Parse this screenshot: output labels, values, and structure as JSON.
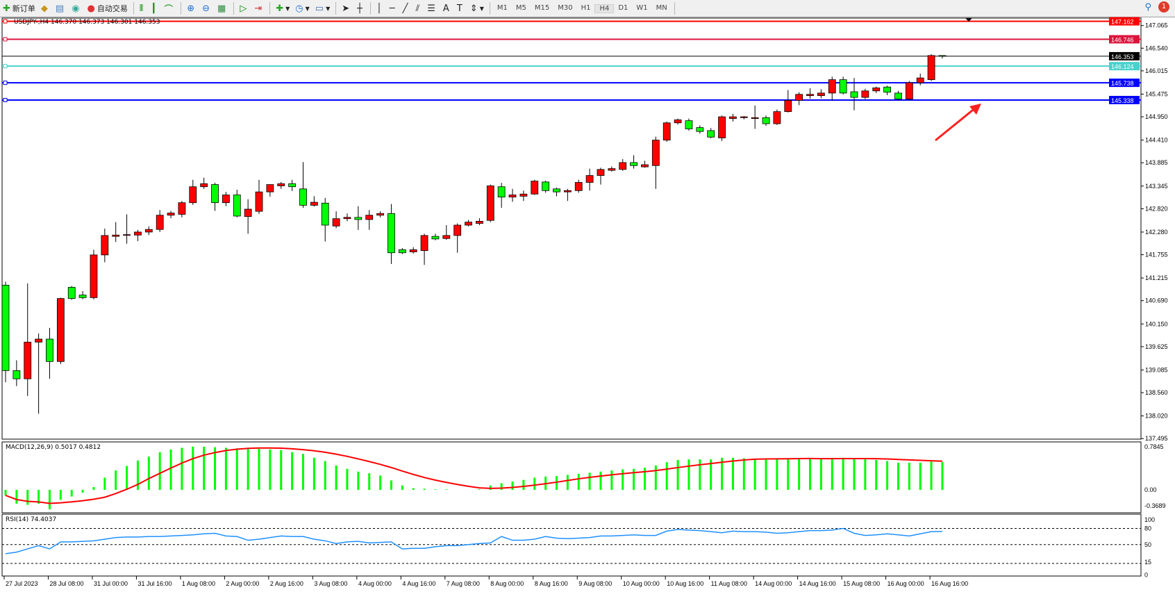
{
  "toolbar": {
    "new_order": "新订单",
    "auto_trading": "自动交易",
    "timeframes": [
      "M1",
      "M5",
      "M15",
      "M30",
      "H1",
      "H4",
      "D1",
      "W1",
      "MN"
    ],
    "active_timeframe": "H4",
    "notification_count": "1",
    "tools": [
      "bar-chart-icon",
      "candlestick-icon",
      "line-chart-icon",
      "zoom-in-icon",
      "zoom-out-icon",
      "tile-windows-icon",
      "autoscroll-icon",
      "chart-shift-icon",
      "new-chart-icon",
      "clock-icon",
      "template-icon",
      "cursor-icon",
      "crosshair-icon",
      "vertical-line-icon",
      "horizontal-line-icon",
      "trendline-icon",
      "equidistant-channel-icon",
      "fibonacci-icon",
      "text-icon",
      "text-label-icon",
      "arrows-icon"
    ]
  },
  "chart": {
    "symbol_line": "USDJPY-,H4  146.370 146.373 146.301 146.353",
    "price_ticks": [
      "147.065",
      "146.540",
      "146.015",
      "145.475",
      "144.950",
      "144.410",
      "143.885",
      "143.345",
      "142.820",
      "142.280",
      "141.755",
      "141.215",
      "140.690",
      "140.150",
      "139.625",
      "139.085",
      "138.560",
      "138.020",
      "137.495"
    ],
    "price_range": [
      137.495,
      147.065
    ],
    "bull_color": "#ff0000",
    "bear_color": "#00ff00",
    "hlines": [
      {
        "price": 147.162,
        "label": "147.162",
        "color": "#ff0000"
      },
      {
        "price": 146.746,
        "label": "146.746",
        "color": "#dc143c"
      },
      {
        "price": 146.353,
        "label": "146.353",
        "color": "#000000"
      },
      {
        "price": 146.124,
        "label": "146.124",
        "color": "#48d1cc"
      },
      {
        "price": 145.738,
        "label": "145.738",
        "color": "#0000ff"
      },
      {
        "price": 145.338,
        "label": "145.338",
        "color": "#0000ff"
      }
    ],
    "time_labels": [
      "27 Jul 2023",
      "28 Jul 08:00",
      "31 Jul 00:00",
      "31 Jul 16:00",
      "1 Aug 08:00",
      "2 Aug 00:00",
      "2 Aug 16:00",
      "3 Aug 08:00",
      "4 Aug 00:00",
      "4 Aug 16:00",
      "7 Aug 08:00",
      "8 Aug 00:00",
      "8 Aug 16:00",
      "9 Aug 08:00",
      "10 Aug 00:00",
      "10 Aug 16:00",
      "11 Aug 08:00",
      "14 Aug 00:00",
      "14 Aug 16:00",
      "15 Aug 08:00",
      "16 Aug 00:00",
      "16 Aug 16:00"
    ],
    "candles_ohlc": [
      [
        141.05,
        141.13,
        138.8,
        139.07
      ],
      [
        139.07,
        139.31,
        138.71,
        138.88
      ],
      [
        138.88,
        141.09,
        138.48,
        139.73
      ],
      [
        139.73,
        139.93,
        138.07,
        139.8
      ],
      [
        139.8,
        140.06,
        138.88,
        139.28
      ],
      [
        139.28,
        140.76,
        139.22,
        140.74
      ],
      [
        141.0,
        141.03,
        140.71,
        140.74
      ],
      [
        140.82,
        140.91,
        140.72,
        140.76
      ],
      [
        140.76,
        141.87,
        140.72,
        141.75
      ],
      [
        141.75,
        142.36,
        141.58,
        142.2
      ],
      [
        142.18,
        142.51,
        142.05,
        142.21
      ],
      [
        142.21,
        142.69,
        142.01,
        142.22
      ],
      [
        142.21,
        142.33,
        142.07,
        142.28
      ],
      [
        142.28,
        142.41,
        142.21,
        142.34
      ],
      [
        142.34,
        142.79,
        142.28,
        142.67
      ],
      [
        142.67,
        142.77,
        142.6,
        142.72
      ],
      [
        142.69,
        143.0,
        142.62,
        142.96
      ],
      [
        142.96,
        143.49,
        142.91,
        143.33
      ],
      [
        143.33,
        143.54,
        143.28,
        143.4
      ],
      [
        143.38,
        143.42,
        142.77,
        142.96
      ],
      [
        142.96,
        143.21,
        142.88,
        143.14
      ],
      [
        143.14,
        143.26,
        142.62,
        142.65
      ],
      [
        142.64,
        143.04,
        142.24,
        142.81
      ],
      [
        142.76,
        143.49,
        142.7,
        143.21
      ],
      [
        143.21,
        143.38,
        143.1,
        143.38
      ],
      [
        143.35,
        143.44,
        143.28,
        143.4
      ],
      [
        143.4,
        143.49,
        143.23,
        143.33
      ],
      [
        143.28,
        143.9,
        142.84,
        142.9
      ],
      [
        142.9,
        143.11,
        142.87,
        142.97
      ],
      [
        142.95,
        143.07,
        142.06,
        142.44
      ],
      [
        142.42,
        142.76,
        142.37,
        142.59
      ],
      [
        142.59,
        142.71,
        142.53,
        142.62
      ],
      [
        142.62,
        142.88,
        142.33,
        142.57
      ],
      [
        142.57,
        142.79,
        142.33,
        142.67
      ],
      [
        142.67,
        142.76,
        142.62,
        142.71
      ],
      [
        142.71,
        142.93,
        141.54,
        141.8
      ],
      [
        141.87,
        141.91,
        141.77,
        141.8
      ],
      [
        141.82,
        141.93,
        141.78,
        141.87
      ],
      [
        141.85,
        142.24,
        141.52,
        142.2
      ],
      [
        142.18,
        142.24,
        142.09,
        142.12
      ],
      [
        142.13,
        142.44,
        142.1,
        142.2
      ],
      [
        142.2,
        142.48,
        141.8,
        142.44
      ],
      [
        142.44,
        142.56,
        142.41,
        142.51
      ],
      [
        142.48,
        142.6,
        142.44,
        142.53
      ],
      [
        142.55,
        143.38,
        142.51,
        143.35
      ],
      [
        143.33,
        143.42,
        142.84,
        143.09
      ],
      [
        143.09,
        143.28,
        142.98,
        143.14
      ],
      [
        143.11,
        143.24,
        143.0,
        143.16
      ],
      [
        143.16,
        143.49,
        143.14,
        143.46
      ],
      [
        143.44,
        143.47,
        143.19,
        143.24
      ],
      [
        143.28,
        143.31,
        143.11,
        143.21
      ],
      [
        143.21,
        143.28,
        143.0,
        143.24
      ],
      [
        143.24,
        143.49,
        143.19,
        143.43
      ],
      [
        143.43,
        143.75,
        143.24,
        143.59
      ],
      [
        143.59,
        143.77,
        143.38,
        143.73
      ],
      [
        143.71,
        143.8,
        143.68,
        143.75
      ],
      [
        143.73,
        143.97,
        143.7,
        143.89
      ],
      [
        143.89,
        144.06,
        143.75,
        143.82
      ],
      [
        143.79,
        143.93,
        143.77,
        143.84
      ],
      [
        143.82,
        144.49,
        143.28,
        144.41
      ],
      [
        144.41,
        144.84,
        144.37,
        144.81
      ],
      [
        144.81,
        144.91,
        144.77,
        144.88
      ],
      [
        144.86,
        144.91,
        144.63,
        144.67
      ],
      [
        144.7,
        144.75,
        144.56,
        144.61
      ],
      [
        144.63,
        144.69,
        144.45,
        144.48
      ],
      [
        144.46,
        144.98,
        144.39,
        144.95
      ],
      [
        144.91,
        145.02,
        144.84,
        144.95
      ],
      [
        144.93,
        144.97,
        144.89,
        144.95
      ],
      [
        144.91,
        145.21,
        144.67,
        144.93
      ],
      [
        144.93,
        144.98,
        144.74,
        144.79
      ],
      [
        144.79,
        145.12,
        144.76,
        145.07
      ],
      [
        145.07,
        145.57,
        145.05,
        145.33
      ],
      [
        145.33,
        145.52,
        145.22,
        145.47
      ],
      [
        145.44,
        145.61,
        145.37,
        145.47
      ],
      [
        145.44,
        145.59,
        145.38,
        145.5
      ],
      [
        145.5,
        145.88,
        145.33,
        145.81
      ],
      [
        145.81,
        145.88,
        145.47,
        145.5
      ],
      [
        145.53,
        145.85,
        145.1,
        145.4
      ],
      [
        145.4,
        145.6,
        145.36,
        145.55
      ],
      [
        145.55,
        145.65,
        145.5,
        145.62
      ],
      [
        145.64,
        145.67,
        145.45,
        145.52
      ],
      [
        145.5,
        145.55,
        145.33,
        145.36
      ],
      [
        145.36,
        145.78,
        145.33,
        145.74
      ],
      [
        145.74,
        145.95,
        145.68,
        145.85
      ],
      [
        145.81,
        146.4,
        145.78,
        146.37
      ],
      [
        146.37,
        146.373,
        146.301,
        146.353
      ]
    ]
  },
  "macd": {
    "label": "MACD(12,26,9) 0.5017 0.4812",
    "ticks": [
      "0.7845",
      "0.00",
      "-0.3689"
    ],
    "range": [
      -0.3689,
      0.7845
    ],
    "signal_period": 9,
    "hist_color": "#00ff00",
    "signal_color": "#ff0000",
    "values": [
      -0.1,
      -0.25,
      -0.27,
      -0.25,
      -0.35,
      -0.18,
      -0.12,
      -0.05,
      0.05,
      0.22,
      0.35,
      0.43,
      0.53,
      0.6,
      0.68,
      0.73,
      0.76,
      0.78,
      0.78,
      0.77,
      0.76,
      0.75,
      0.74,
      0.74,
      0.73,
      0.72,
      0.68,
      0.65,
      0.58,
      0.52,
      0.44,
      0.38,
      0.33,
      0.3,
      0.26,
      0.17,
      0.08,
      0.03,
      0.02,
      0.01,
      0.01,
      0.0,
      0.0,
      0.01,
      0.08,
      0.12,
      0.15,
      0.18,
      0.22,
      0.24,
      0.25,
      0.27,
      0.29,
      0.31,
      0.33,
      0.35,
      0.37,
      0.38,
      0.4,
      0.44,
      0.5,
      0.54,
      0.55,
      0.55,
      0.55,
      0.58,
      0.58,
      0.57,
      0.56,
      0.55,
      0.55,
      0.57,
      0.57,
      0.56,
      0.56,
      0.58,
      0.58,
      0.56,
      0.55,
      0.54,
      0.52,
      0.49,
      0.49,
      0.49,
      0.51,
      0.5017
    ]
  },
  "rsi": {
    "label": "RSI(14) 74.4037",
    "ticks": [
      "100",
      "80",
      "50",
      "15",
      "0"
    ],
    "levels": [
      80,
      50,
      15
    ],
    "color": "#1e90ff",
    "values": [
      33,
      36,
      42,
      48,
      42,
      55,
      55,
      56,
      57,
      60,
      63,
      64,
      64,
      65,
      65,
      66,
      67,
      68,
      70,
      71,
      66,
      65,
      58,
      60,
      63,
      66,
      65,
      65,
      60,
      57,
      52,
      55,
      56,
      53,
      54,
      55,
      42,
      43,
      43,
      46,
      48,
      48,
      50,
      52,
      53,
      65,
      58,
      58,
      60,
      65,
      62,
      61,
      62,
      63,
      66,
      66,
      67,
      68,
      67,
      67,
      75,
      78,
      77,
      76,
      74,
      72,
      75,
      74,
      74,
      73,
      71,
      72,
      74,
      76,
      76,
      77,
      80,
      71,
      67,
      68,
      70,
      68,
      66,
      70,
      74,
      74.4037
    ]
  },
  "annotation": {
    "arrow_color": "#ff2020"
  }
}
